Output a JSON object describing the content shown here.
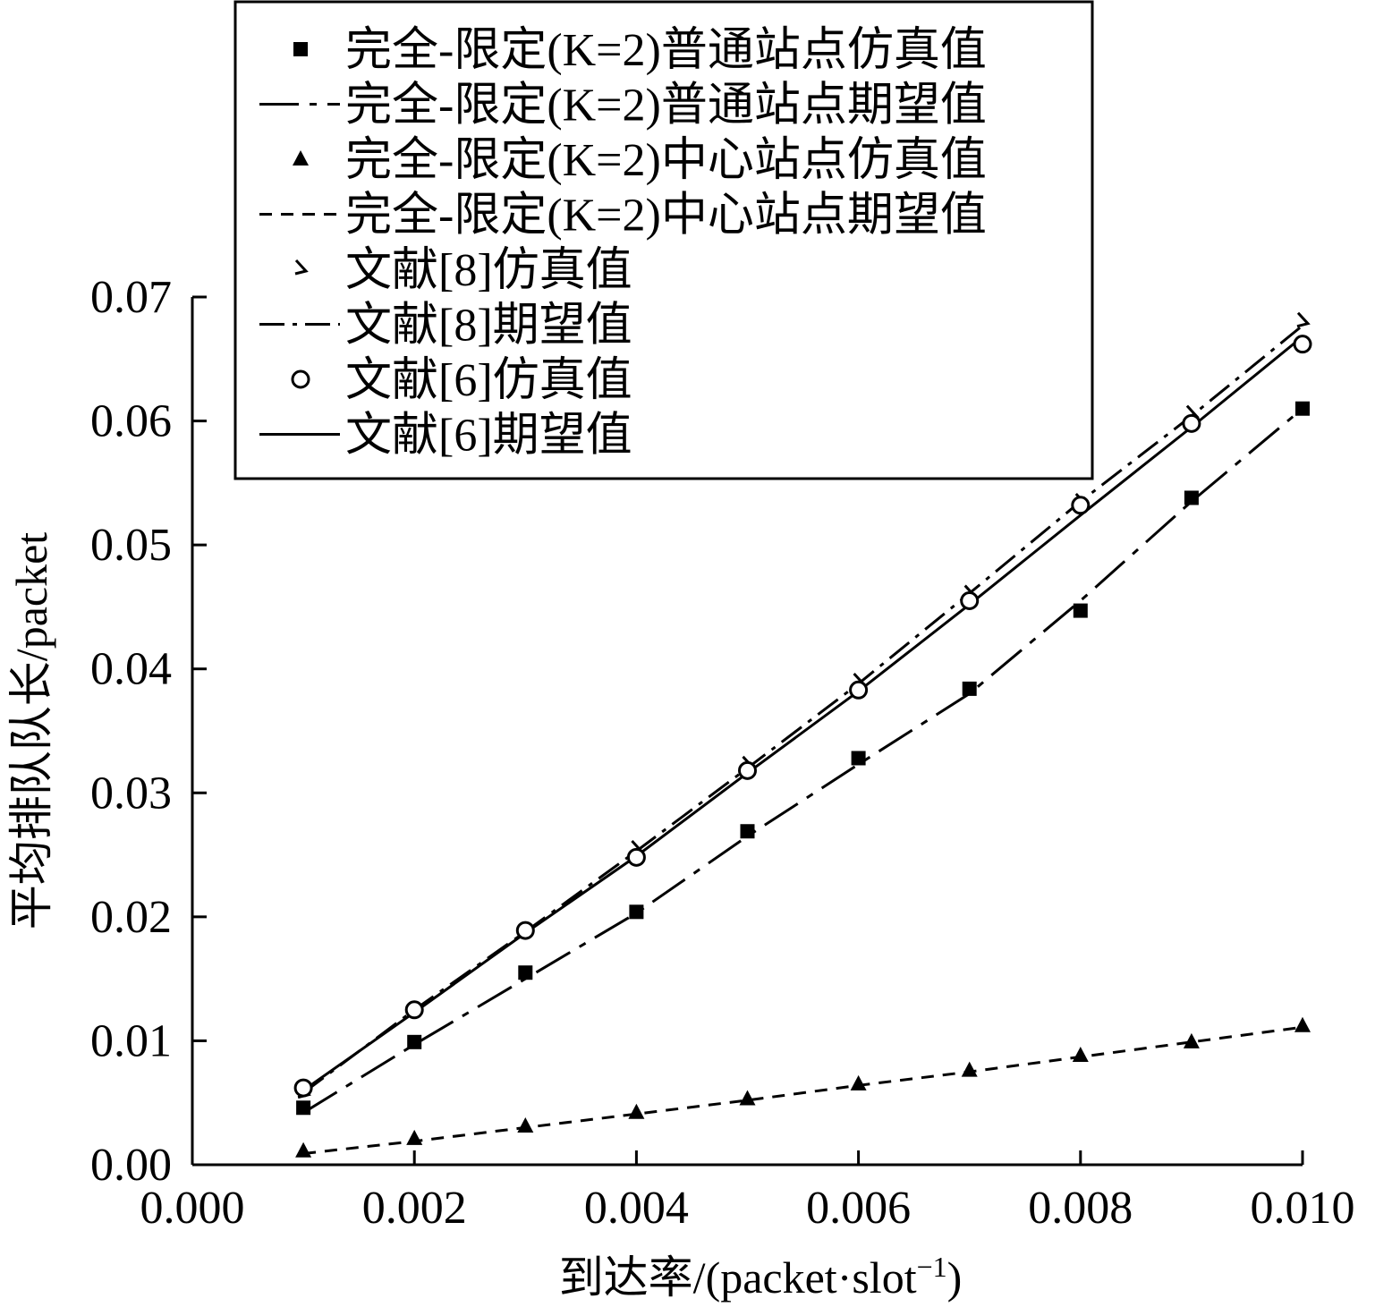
{
  "chart_data": {
    "type": "line",
    "xlabel_main": "到达率/(packet·slot",
    "xlabel_sup": "−1",
    "xlabel_close": ")",
    "ylabel": "平均排队队长/packet",
    "xlim": [
      0.0,
      0.01
    ],
    "ylim": [
      0.0,
      0.07
    ],
    "x_ticks": [
      "0.000",
      "0.002",
      "0.004",
      "0.006",
      "0.008",
      "0.010"
    ],
    "y_ticks": [
      "0.00",
      "0.01",
      "0.02",
      "0.03",
      "0.04",
      "0.05",
      "0.06",
      "0.07"
    ],
    "x": [
      0.001,
      0.002,
      0.003,
      0.004,
      0.005,
      0.006,
      0.007,
      0.008,
      0.009,
      0.01
    ],
    "legend_position": "top-left",
    "series": [
      {
        "name": "完全-限定(K=2)普通站点仿真值",
        "kind": "markers",
        "marker": "square",
        "values": [
          0.0046,
          0.0099,
          0.0155,
          0.0204,
          0.0269,
          0.0328,
          0.0384,
          0.0447,
          0.0538,
          0.061
        ]
      },
      {
        "name": "完全-限定(K=2)普通站点期望值",
        "kind": "line",
        "dash": "longdash-dot",
        "values": [
          0.0042,
          0.0097,
          0.015,
          0.0203,
          0.0265,
          0.0323,
          0.038,
          0.0455,
          0.0535,
          0.061
        ]
      },
      {
        "name": "完全-限定(K=2)中心站点仿真值",
        "kind": "markers",
        "marker": "triangle",
        "values": [
          0.0011,
          0.0021,
          0.0031,
          0.0042,
          0.0053,
          0.0065,
          0.0076,
          0.0088,
          0.0099,
          0.0112
        ]
      },
      {
        "name": "完全-限定(K=2)中心站点期望值",
        "kind": "line",
        "dash": "dashed",
        "values": [
          0.0009,
          0.0019,
          0.003,
          0.0041,
          0.0052,
          0.0064,
          0.0075,
          0.0087,
          0.0099,
          0.0111
        ]
      },
      {
        "name": "文献[8]仿真值",
        "kind": "markers",
        "marker": "hook",
        "values": [
          0.0058,
          0.0124,
          0.0187,
          0.0254,
          0.0322,
          0.0389,
          0.046,
          0.0534,
          0.0605,
          0.068
        ]
      },
      {
        "name": "文献[8]期望值",
        "kind": "line",
        "dash": "dashdot",
        "values": [
          0.0058,
          0.0125,
          0.0188,
          0.0253,
          0.032,
          0.0388,
          0.0461,
          0.0535,
          0.0604,
          0.0677
        ]
      },
      {
        "name": "文献[6]仿真值",
        "kind": "markers",
        "marker": "circle",
        "values": [
          0.0062,
          0.0125,
          0.0189,
          0.0248,
          0.0318,
          0.0383,
          0.0455,
          0.0532,
          0.0598,
          0.0662
        ]
      },
      {
        "name": "文献[6]期望值",
        "kind": "line",
        "dash": "solid",
        "values": [
          0.006,
          0.0123,
          0.0187,
          0.0249,
          0.0316,
          0.0382,
          0.0452,
          0.0524,
          0.0595,
          0.0668
        ]
      }
    ]
  }
}
